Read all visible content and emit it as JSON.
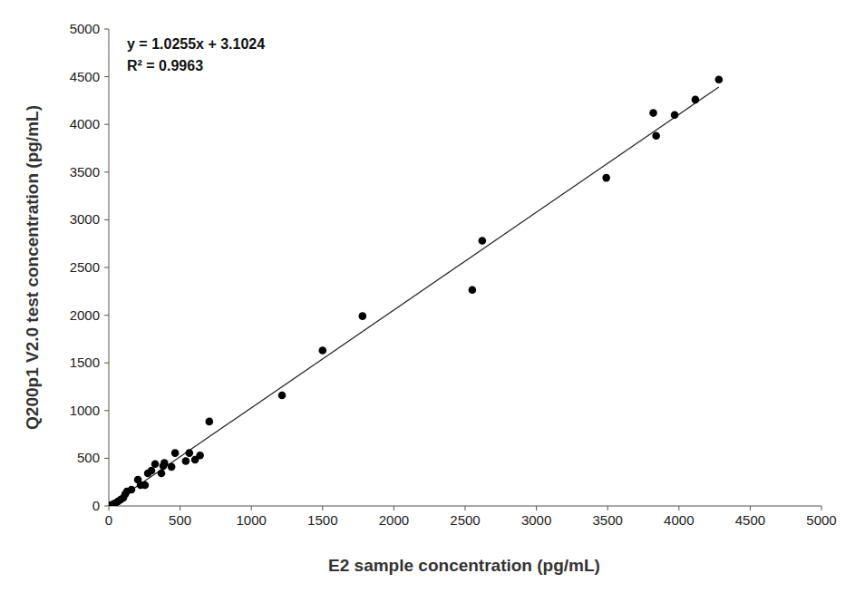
{
  "chart_data": {
    "type": "scatter",
    "x_label": "E2 sample concentration (pg/mL)",
    "y_label": "Q200p1 V2.0 test concentration  (pg/mL)",
    "annotations": [
      "y = 1.0255x + 3.1024",
      "R² = 0.9963"
    ],
    "trendline": {
      "slope": 1.0255,
      "intercept": 3.1024
    },
    "xlim": [
      0,
      5000
    ],
    "ylim": [
      0,
      5000
    ],
    "xticks": [
      0,
      500,
      1000,
      1500,
      2000,
      2500,
      3000,
      3500,
      4000,
      4500,
      5000
    ],
    "yticks": [
      0,
      500,
      1000,
      1500,
      2000,
      2500,
      3000,
      3500,
      4000,
      4500,
      5000
    ],
    "grid": false,
    "color": "#000000",
    "marker": "circle",
    "x": [
      4280,
      4115,
      3970,
      3820,
      3840,
      3490,
      2620,
      2550,
      1780,
      1500,
      1215,
      705,
      465,
      640,
      605,
      565,
      540,
      440,
      382,
      390,
      325,
      369,
      299,
      274,
      254,
      204,
      223,
      159,
      127,
      115,
      102,
      64,
      32,
      13,
      45,
      83
    ],
    "values": [
      4470,
      4260,
      4100,
      4120,
      3880,
      3440,
      2780,
      2265,
      1990,
      1630,
      1160,
      885,
      555,
      530,
      485,
      555,
      470,
      410,
      418,
      450,
      440,
      342,
      371,
      342,
      219,
      276,
      219,
      171,
      152,
      124,
      86,
      48,
      19,
      10,
      29,
      67
    ]
  }
}
